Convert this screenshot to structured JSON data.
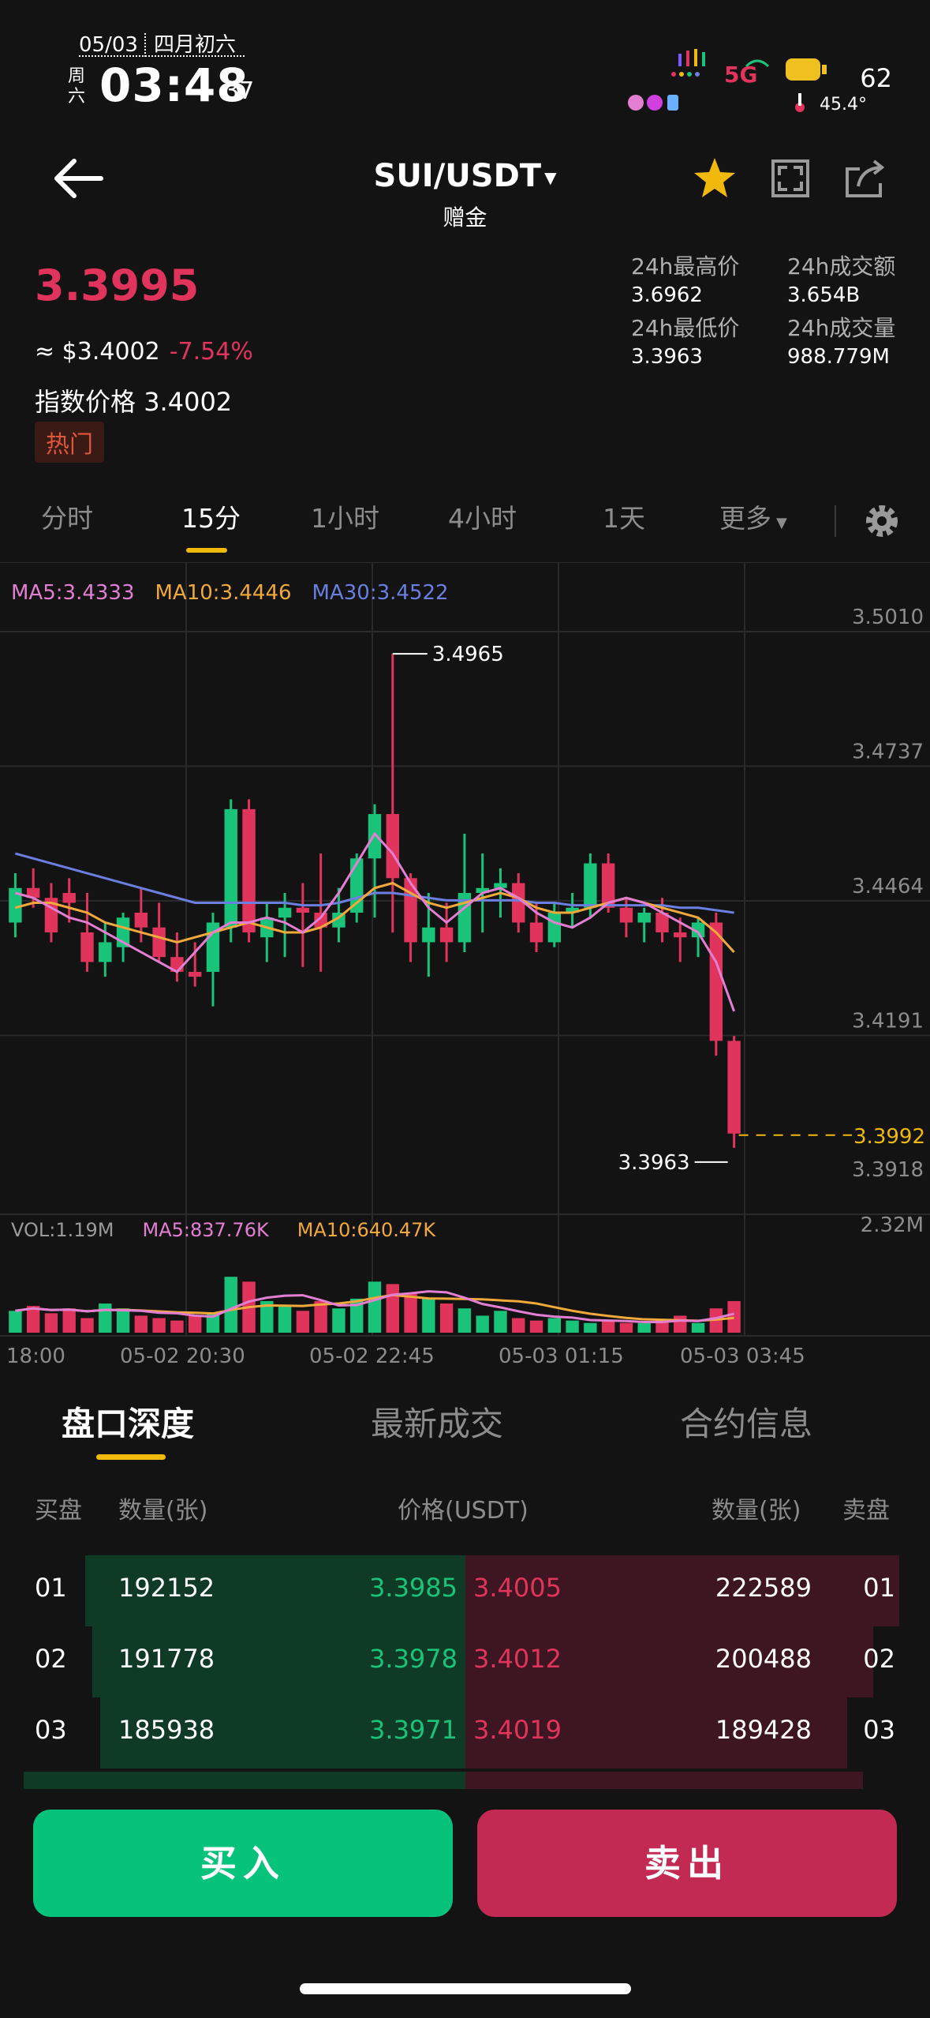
{
  "status_bar": {
    "date": "05/03",
    "lunar": "四月初六",
    "weekday": "周六",
    "time": "03:48",
    "seconds": "37",
    "network": "5G",
    "battery": "62",
    "temperature": "45.4°"
  },
  "header": {
    "pair": "SUI/USDT",
    "subtitle": "赠金"
  },
  "ticker": {
    "last_price": "3.3995",
    "usd_price": "≈ $3.4002",
    "change_pct": "-7.54%",
    "index_label": "指数价格",
    "index_value": "3.4002",
    "badge": "热门",
    "high_label": "24h最高价",
    "high_value": "3.6962",
    "low_label": "24h最低价",
    "low_value": "3.3963",
    "turnover_label": "24h成交额",
    "turnover_value": "3.654B",
    "volume_label": "24h成交量",
    "volume_value": "988.779M"
  },
  "intervals": [
    "分时",
    "15分",
    "1小时",
    "4小时",
    "1天",
    "更多"
  ],
  "active_interval": "15分",
  "ma_legend": {
    "ma5": "MA5:3.4333",
    "ma10": "MA10:3.4446",
    "ma30": "MA30:3.4522"
  },
  "vol_legend": {
    "vol": "VOL:1.19M",
    "ma5": "MA5:837.76K",
    "ma10": "MA10:640.47K"
  },
  "colors": {
    "up": "#19c37a",
    "down": "#e0345c",
    "ma5": "#e37fd2",
    "ma10": "#f0a93a",
    "ma30": "#6a7fe0",
    "accent": "#f0b90b"
  },
  "chart_data": {
    "type": "candlestick",
    "y_ticks": [
      "3.5010",
      "3.4737",
      "3.4464",
      "3.4191",
      "3.3918"
    ],
    "ylim": [
      3.3918,
      3.501
    ],
    "x_ticks": [
      "18:00",
      "05-02 20:30",
      "05-02 22:45",
      "05-03 01:15",
      "05-03 03:45"
    ],
    "high_marker": "3.4965",
    "low_marker": "3.3963",
    "current_price": "3.3992",
    "volume_axis_max": "2.32M",
    "candles": [
      {
        "o": 3.442,
        "h": 3.452,
        "l": 3.439,
        "c": 3.449
      },
      {
        "o": 3.449,
        "h": 3.453,
        "l": 3.445,
        "c": 3.447
      },
      {
        "o": 3.447,
        "h": 3.45,
        "l": 3.438,
        "c": 3.44
      },
      {
        "o": 3.448,
        "h": 3.451,
        "l": 3.442,
        "c": 3.446
      },
      {
        "o": 3.44,
        "h": 3.448,
        "l": 3.432,
        "c": 3.434
      },
      {
        "o": 3.434,
        "h": 3.442,
        "l": 3.431,
        "c": 3.438
      },
      {
        "o": 3.437,
        "h": 3.444,
        "l": 3.434,
        "c": 3.443
      },
      {
        "o": 3.444,
        "h": 3.449,
        "l": 3.438,
        "c": 3.441
      },
      {
        "o": 3.441,
        "h": 3.446,
        "l": 3.434,
        "c": 3.435
      },
      {
        "o": 3.435,
        "h": 3.44,
        "l": 3.43,
        "c": 3.432
      },
      {
        "o": 3.432,
        "h": 3.438,
        "l": 3.429,
        "c": 3.431
      },
      {
        "o": 3.432,
        "h": 3.444,
        "l": 3.425,
        "c": 3.442
      },
      {
        "o": 3.441,
        "h": 3.467,
        "l": 3.438,
        "c": 3.465
      },
      {
        "o": 3.465,
        "h": 3.467,
        "l": 3.438,
        "c": 3.44
      },
      {
        "o": 3.439,
        "h": 3.446,
        "l": 3.434,
        "c": 3.443
      },
      {
        "o": 3.443,
        "h": 3.448,
        "l": 3.435,
        "c": 3.445
      },
      {
        "o": 3.445,
        "h": 3.45,
        "l": 3.433,
        "c": 3.444
      },
      {
        "o": 3.444,
        "h": 3.456,
        "l": 3.432,
        "c": 3.441
      },
      {
        "o": 3.441,
        "h": 3.449,
        "l": 3.438,
        "c": 3.444
      },
      {
        "o": 3.444,
        "h": 3.456,
        "l": 3.442,
        "c": 3.455
      },
      {
        "o": 3.455,
        "h": 3.466,
        "l": 3.443,
        "c": 3.464
      },
      {
        "o": 3.464,
        "h": 3.4965,
        "l": 3.44,
        "c": 3.451
      },
      {
        "o": 3.451,
        "h": 3.452,
        "l": 3.434,
        "c": 3.438
      },
      {
        "o": 3.438,
        "h": 3.448,
        "l": 3.431,
        "c": 3.441
      },
      {
        "o": 3.441,
        "h": 3.446,
        "l": 3.434,
        "c": 3.438
      },
      {
        "o": 3.438,
        "h": 3.46,
        "l": 3.436,
        "c": 3.448
      },
      {
        "o": 3.448,
        "h": 3.456,
        "l": 3.44,
        "c": 3.449
      },
      {
        "o": 3.449,
        "h": 3.453,
        "l": 3.443,
        "c": 3.45
      },
      {
        "o": 3.45,
        "h": 3.452,
        "l": 3.44,
        "c": 3.442
      },
      {
        "o": 3.442,
        "h": 3.446,
        "l": 3.436,
        "c": 3.438
      },
      {
        "o": 3.438,
        "h": 3.446,
        "l": 3.437,
        "c": 3.444
      },
      {
        "o": 3.444,
        "h": 3.448,
        "l": 3.441,
        "c": 3.445
      },
      {
        "o": 3.445,
        "h": 3.456,
        "l": 3.443,
        "c": 3.454
      },
      {
        "o": 3.454,
        "h": 3.456,
        "l": 3.444,
        "c": 3.445
      },
      {
        "o": 3.445,
        "h": 3.447,
        "l": 3.439,
        "c": 3.442
      },
      {
        "o": 3.442,
        "h": 3.445,
        "l": 3.438,
        "c": 3.444
      },
      {
        "o": 3.444,
        "h": 3.447,
        "l": 3.438,
        "c": 3.44
      },
      {
        "o": 3.44,
        "h": 3.443,
        "l": 3.434,
        "c": 3.439
      },
      {
        "o": 3.439,
        "h": 3.443,
        "l": 3.435,
        "c": 3.442
      },
      {
        "o": 3.442,
        "h": 3.444,
        "l": 3.415,
        "c": 3.418
      },
      {
        "o": 3.418,
        "h": 3.419,
        "l": 3.3963,
        "c": 3.3992
      }
    ],
    "volume_ratio": [
      0.18,
      0.22,
      0.16,
      0.2,
      0.12,
      0.24,
      0.2,
      0.14,
      0.12,
      0.1,
      0.14,
      0.16,
      0.46,
      0.42,
      0.26,
      0.22,
      0.18,
      0.26,
      0.2,
      0.28,
      0.42,
      0.4,
      0.32,
      0.28,
      0.24,
      0.2,
      0.14,
      0.18,
      0.12,
      0.1,
      0.12,
      0.1,
      0.08,
      0.1,
      0.08,
      0.08,
      0.1,
      0.14,
      0.08,
      0.2,
      0.26
    ],
    "ma5": [
      3.448,
      3.447,
      3.445,
      3.443,
      3.442,
      3.44,
      3.438,
      3.436,
      3.434,
      3.432,
      3.436,
      3.44,
      3.442,
      3.442,
      3.443,
      3.442,
      3.44,
      3.443,
      3.448,
      3.454,
      3.46,
      3.456,
      3.45,
      3.445,
      3.442,
      3.445,
      3.448,
      3.449,
      3.447,
      3.444,
      3.442,
      3.441,
      3.443,
      3.446,
      3.447,
      3.446,
      3.444,
      3.442,
      3.44,
      3.434,
      3.424
    ],
    "ma10": [
      3.445,
      3.446,
      3.446,
      3.445,
      3.444,
      3.442,
      3.441,
      3.44,
      3.439,
      3.438,
      3.439,
      3.44,
      3.441,
      3.442,
      3.441,
      3.44,
      3.44,
      3.441,
      3.443,
      3.446,
      3.449,
      3.45,
      3.448,
      3.446,
      3.445,
      3.446,
      3.447,
      3.448,
      3.447,
      3.445,
      3.444,
      3.444,
      3.445,
      3.446,
      3.447,
      3.446,
      3.445,
      3.444,
      3.443,
      3.44,
      3.436
    ],
    "ma30": [
      3.456,
      3.455,
      3.454,
      3.453,
      3.452,
      3.451,
      3.45,
      3.449,
      3.448,
      3.447,
      3.446,
      3.446,
      3.446,
      3.446,
      3.446,
      3.446,
      3.4455,
      3.4455,
      3.446,
      3.447,
      3.448,
      3.448,
      3.4475,
      3.447,
      3.4465,
      3.4465,
      3.4465,
      3.4465,
      3.4465,
      3.446,
      3.446,
      3.4455,
      3.4455,
      3.4455,
      3.4455,
      3.4455,
      3.4455,
      3.445,
      3.445,
      3.4445,
      3.444
    ]
  },
  "orderbook": {
    "tabs": [
      "盘口深度",
      "最新成交",
      "合约信息"
    ],
    "head_bid": "买盘",
    "head_qty_left": "数量(张)",
    "head_price": "价格(USDT)",
    "head_qty_right": "数量(张)",
    "head_ask": "卖盘",
    "rows": [
      {
        "idx": "01",
        "bid_qty": "192152",
        "bid_px": "3.3985",
        "ask_px": "3.4005",
        "ask_qty": "222589",
        "bid_fill": 0.91,
        "ask_fill": 1.0
      },
      {
        "idx": "02",
        "bid_qty": "191778",
        "bid_px": "3.3978",
        "ask_px": "3.4012",
        "ask_qty": "200488",
        "bid_fill": 0.89,
        "ask_fill": 0.94
      },
      {
        "idx": "03",
        "bid_qty": "185938",
        "bid_px": "3.3971",
        "ask_px": "3.4019",
        "ask_qty": "189428",
        "bid_fill": 0.87,
        "ask_fill": 0.88
      }
    ]
  },
  "actions": {
    "buy": "买入",
    "sell": "卖出"
  }
}
